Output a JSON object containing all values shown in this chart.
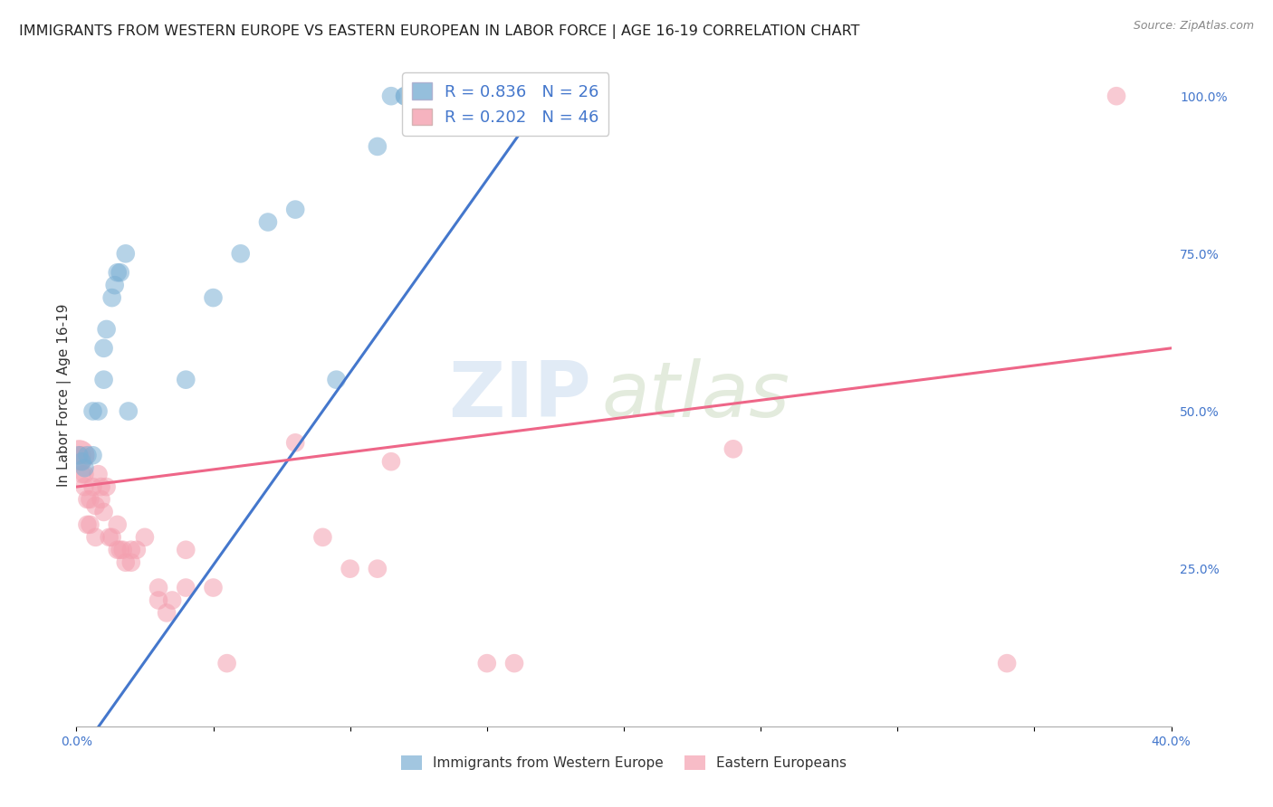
{
  "title": "IMMIGRANTS FROM WESTERN EUROPE VS EASTERN EUROPEAN IN LABOR FORCE | AGE 16-19 CORRELATION CHART",
  "source": "Source: ZipAtlas.com",
  "ylabel": "In Labor Force | Age 16-19",
  "xlim": [
    0.0,
    0.4
  ],
  "ylim": [
    0.0,
    1.05
  ],
  "xticks": [
    0.0,
    0.05,
    0.1,
    0.15,
    0.2,
    0.25,
    0.3,
    0.35,
    0.4
  ],
  "xtick_labels": [
    "0.0%",
    "",
    "",
    "",
    "",
    "",
    "",
    "",
    "40.0%"
  ],
  "ytick_labels_right": [
    "100.0%",
    "75.0%",
    "50.0%",
    "25.0%"
  ],
  "yticks_right": [
    1.0,
    0.75,
    0.5,
    0.25
  ],
  "blue_color": "#7BAFD4",
  "pink_color": "#F4A0B0",
  "blue_line_color": "#4477CC",
  "pink_line_color": "#EE6688",
  "blue_R": 0.836,
  "blue_N": 26,
  "pink_R": 0.202,
  "pink_N": 46,
  "blue_scatter": [
    [
      0.001,
      0.43
    ],
    [
      0.002,
      0.42
    ],
    [
      0.003,
      0.41
    ],
    [
      0.004,
      0.43
    ],
    [
      0.006,
      0.43
    ],
    [
      0.006,
      0.5
    ],
    [
      0.008,
      0.5
    ],
    [
      0.01,
      0.55
    ],
    [
      0.01,
      0.6
    ],
    [
      0.011,
      0.63
    ],
    [
      0.013,
      0.68
    ],
    [
      0.014,
      0.7
    ],
    [
      0.015,
      0.72
    ],
    [
      0.016,
      0.72
    ],
    [
      0.018,
      0.75
    ],
    [
      0.019,
      0.5
    ],
    [
      0.04,
      0.55
    ],
    [
      0.05,
      0.68
    ],
    [
      0.06,
      0.75
    ],
    [
      0.07,
      0.8
    ],
    [
      0.08,
      0.82
    ],
    [
      0.095,
      0.55
    ],
    [
      0.11,
      0.92
    ],
    [
      0.115,
      1.0
    ],
    [
      0.12,
      1.0
    ],
    [
      0.12,
      1.0
    ]
  ],
  "pink_scatter": [
    [
      0.001,
      0.43
    ],
    [
      0.002,
      0.4
    ],
    [
      0.002,
      0.43
    ],
    [
      0.003,
      0.4
    ],
    [
      0.003,
      0.38
    ],
    [
      0.004,
      0.36
    ],
    [
      0.004,
      0.32
    ],
    [
      0.005,
      0.36
    ],
    [
      0.005,
      0.32
    ],
    [
      0.006,
      0.38
    ],
    [
      0.007,
      0.35
    ],
    [
      0.007,
      0.3
    ],
    [
      0.008,
      0.4
    ],
    [
      0.009,
      0.38
    ],
    [
      0.009,
      0.36
    ],
    [
      0.01,
      0.34
    ],
    [
      0.011,
      0.38
    ],
    [
      0.012,
      0.3
    ],
    [
      0.013,
      0.3
    ],
    [
      0.015,
      0.32
    ],
    [
      0.015,
      0.28
    ],
    [
      0.016,
      0.28
    ],
    [
      0.017,
      0.28
    ],
    [
      0.018,
      0.26
    ],
    [
      0.02,
      0.28
    ],
    [
      0.02,
      0.26
    ],
    [
      0.022,
      0.28
    ],
    [
      0.025,
      0.3
    ],
    [
      0.03,
      0.22
    ],
    [
      0.03,
      0.2
    ],
    [
      0.033,
      0.18
    ],
    [
      0.035,
      0.2
    ],
    [
      0.04,
      0.22
    ],
    [
      0.04,
      0.28
    ],
    [
      0.05,
      0.22
    ],
    [
      0.055,
      0.1
    ],
    [
      0.08,
      0.45
    ],
    [
      0.09,
      0.3
    ],
    [
      0.1,
      0.25
    ],
    [
      0.11,
      0.25
    ],
    [
      0.115,
      0.42
    ],
    [
      0.15,
      0.1
    ],
    [
      0.16,
      0.1
    ],
    [
      0.24,
      0.44
    ],
    [
      0.34,
      0.1
    ],
    [
      0.38,
      1.0
    ]
  ],
  "blue_line": [
    [
      0.0,
      -0.05
    ],
    [
      0.175,
      1.02
    ]
  ],
  "pink_line": [
    [
      0.0,
      0.38
    ],
    [
      0.4,
      0.6
    ]
  ],
  "watermark_zip": "ZIP",
  "watermark_atlas": "atlas",
  "background_color": "#ffffff",
  "grid_color": "#DDDDEE",
  "title_fontsize": 11.5,
  "label_fontsize": 11,
  "tick_fontsize": 10,
  "legend_fontsize": 13
}
